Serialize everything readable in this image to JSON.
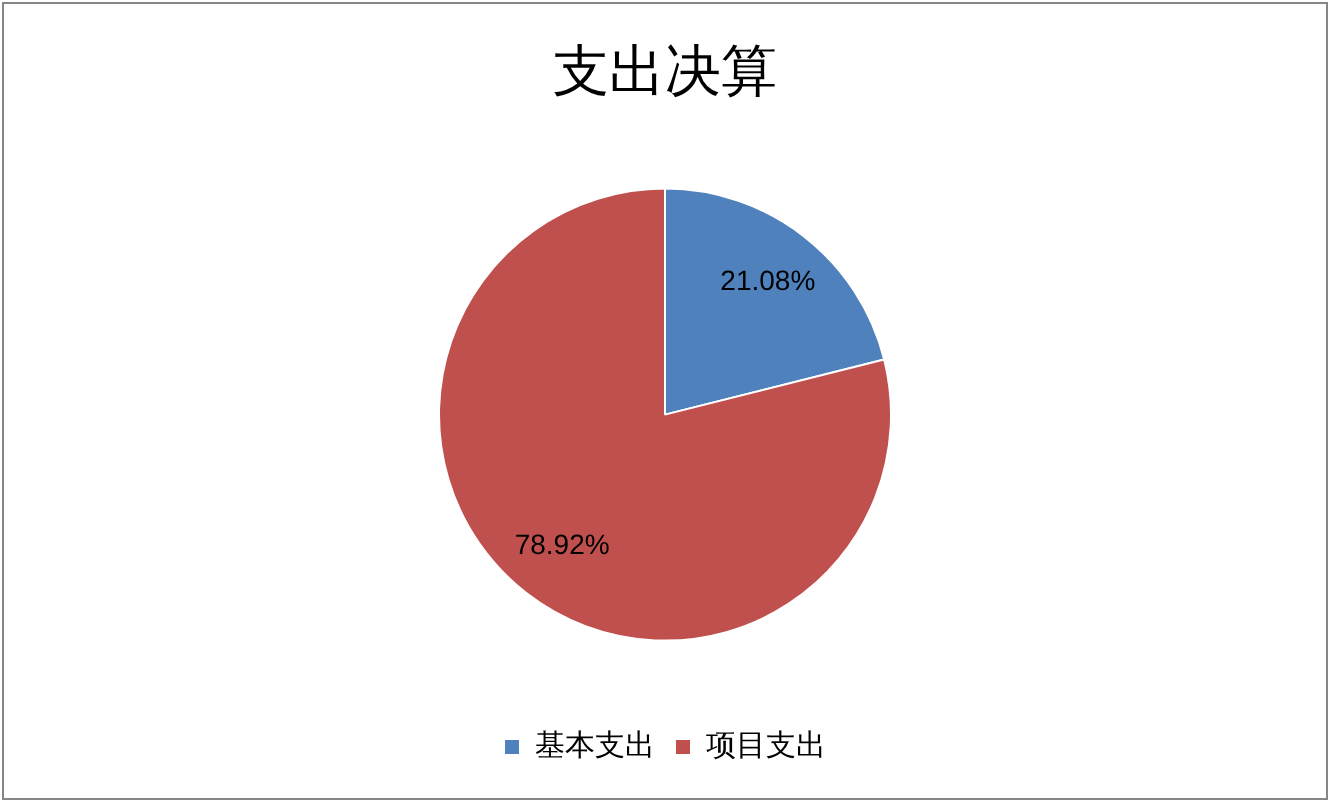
{
  "chart_data": {
    "type": "pie",
    "title": "支出决算",
    "categories": [
      "基本支出",
      "项目支出"
    ],
    "values": [
      21.08,
      78.92
    ],
    "colors": [
      "#4f81bd",
      "#c0504d"
    ],
    "value_labels": [
      "21.08%",
      "78.92%"
    ],
    "legend": "bottom"
  }
}
